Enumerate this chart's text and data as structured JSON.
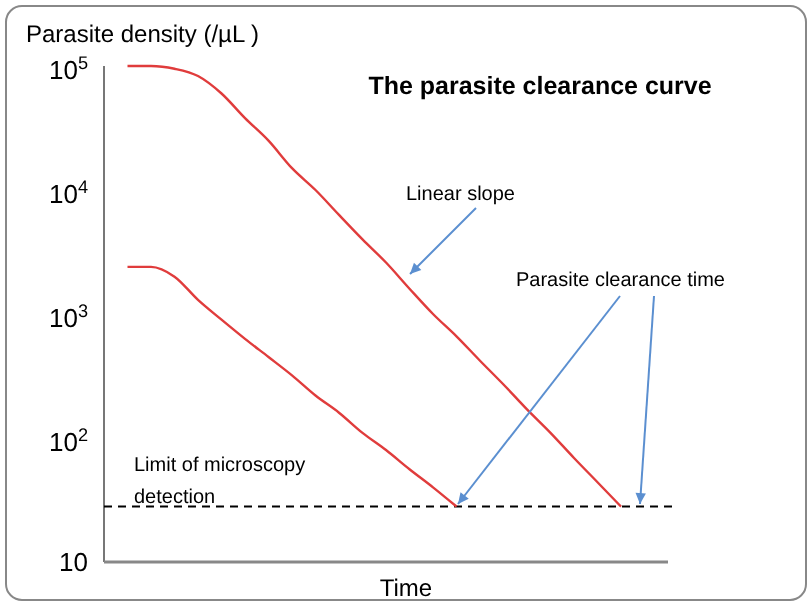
{
  "chart_data": {
    "type": "line",
    "title": "The parasite clearance curve",
    "ylabel": "Parasite density (/µL )",
    "xlabel": "Time",
    "categories": [
      null,
      null,
      null,
      null,
      null,
      null,
      null,
      null,
      null,
      null,
      null,
      null,
      null,
      null,
      null,
      null,
      null,
      null,
      null,
      null,
      null,
      null,
      null,
      null,
      null
    ],
    "series": [
      {
        "color": "#e03c3c",
        "values": [
          null,
          100000,
          100000,
          95000,
          83000,
          60000,
          38000,
          25000,
          15000,
          10000,
          6300,
          4000,
          2600,
          1600,
          1000,
          660,
          420,
          270,
          170,
          110,
          69,
          44,
          28,
          null,
          null
        ]
      },
      {
        "color": "#e03c3c",
        "values": [
          null,
          2400,
          2400,
          2000,
          1300,
          900,
          630,
          450,
          320,
          220,
          160,
          110,
          80,
          56,
          40,
          28,
          null,
          null,
          null,
          null,
          null,
          null,
          null,
          null,
          null
        ]
      }
    ],
    "log": true,
    "ylim": [
      10,
      100000
    ],
    "yticks": [
      10,
      {
        "value": 100,
        "label": "10$^{2}$"
      },
      {
        "value": 1000,
        "label": "10$^{3}$"
      },
      {
        "value": 10000,
        "label": "10$^{4}$"
      },
      {
        "value": 100000,
        "label": "10$^{5}$"
      }
    ],
    "grid": false,
    "marker": "none",
    "line_style": "solid",
    "ref_lines": [
      {
        "axis": "y",
        "value": 28,
        "label": "Limit of microscopy detection",
        "color": "#000000",
        "line_style": "dashed"
      }
    ],
    "annotations": [
      "Linear slope",
      "Parasite clearance time"
    ]
  }
}
